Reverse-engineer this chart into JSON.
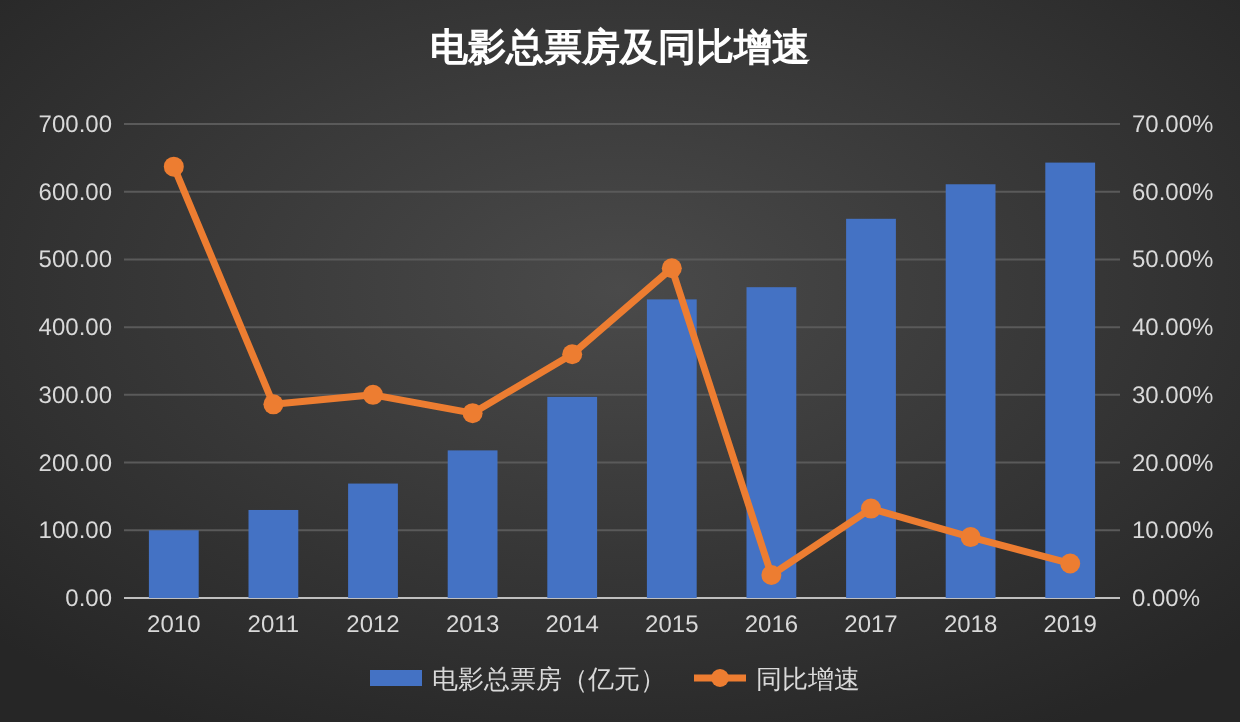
{
  "chart_data": {
    "type": "bar",
    "title": "电影总票房及同比增速",
    "categories": [
      "2010",
      "2011",
      "2012",
      "2013",
      "2014",
      "2015",
      "2016",
      "2017",
      "2018",
      "2019"
    ],
    "series": [
      {
        "name": "电影总票房（亿元）",
        "color": "#4472c4",
        "values": [
          100,
          130,
          169,
          218,
          297,
          441,
          459,
          560,
          611,
          643
        ]
      },
      {
        "name": "同比增速",
        "type": "line",
        "axis": "y2",
        "color": "#ed7d31",
        "marker": "circle",
        "values": [
          63.7,
          28.6,
          30.0,
          27.3,
          36.0,
          48.7,
          3.4,
          13.2,
          9.0,
          5.1
        ]
      }
    ],
    "ylim": [
      0,
      700
    ],
    "yticks": [
      {
        "value": 0,
        "label": "0.00"
      },
      {
        "value": 100,
        "label": "100.00"
      },
      {
        "value": 200,
        "label": "200.00"
      },
      {
        "value": 300,
        "label": "300.00"
      },
      {
        "value": 400,
        "label": "400.00"
      },
      {
        "value": 500,
        "label": "500.00"
      },
      {
        "value": 600,
        "label": "600.00"
      },
      {
        "value": 700,
        "label": "700.00"
      }
    ],
    "y2lim": [
      0,
      70
    ],
    "y2ticks": [
      {
        "value": 0,
        "label": "0.00%"
      },
      {
        "value": 10,
        "label": "10.00%"
      },
      {
        "value": 20,
        "label": "20.00%"
      },
      {
        "value": 30,
        "label": "30.00%"
      },
      {
        "value": 40,
        "label": "40.00%"
      },
      {
        "value": 50,
        "label": "50.00%"
      },
      {
        "value": 60,
        "label": "60.00%"
      },
      {
        "value": 70,
        "label": "70.00%"
      }
    ],
    "grid": "y",
    "legend": "bottom"
  }
}
